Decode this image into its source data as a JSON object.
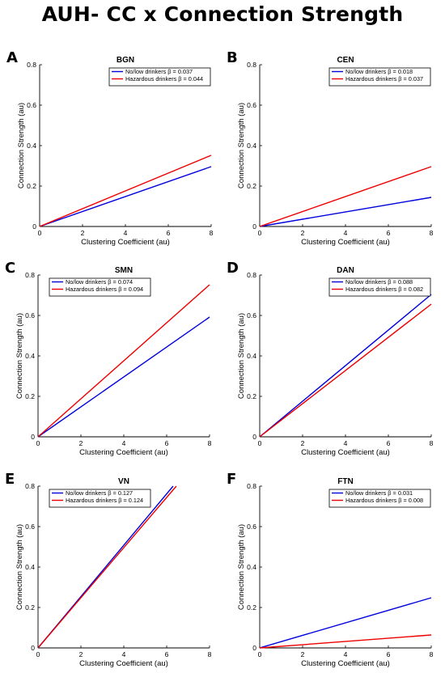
{
  "title": "AUH- CC x Connection Strength",
  "colors": {
    "no_low": "#0000dd",
    "hazardous": "#ee0000"
  },
  "chart_data": [
    {
      "panel_letter": "A",
      "type": "line",
      "title": "BGN",
      "xlabel": "Clustering Coefficient (au)",
      "ylabel": "Connection Strength (au)",
      "xlim": [
        0,
        8
      ],
      "ylim": [
        0,
        0.8
      ],
      "xticks": [
        "0",
        "2",
        "4",
        "6",
        "8"
      ],
      "yticks": [
        "0",
        "0.2",
        "0.4",
        "0.6",
        "0.8"
      ],
      "legend_position": "top-right",
      "series": [
        {
          "name": "No/low drinkers β = 0.037",
          "color": "#0000dd",
          "x": [
            0,
            8
          ],
          "y": [
            0,
            0.296
          ]
        },
        {
          "name": "Hazardous drinkers β = 0.044",
          "color": "#ee0000",
          "x": [
            0,
            8
          ],
          "y": [
            0,
            0.352
          ]
        }
      ]
    },
    {
      "panel_letter": "B",
      "type": "line",
      "title": "CEN",
      "xlabel": "Clustering Coefficient (au)",
      "ylabel": "Connection Strength (au)",
      "xlim": [
        0,
        8
      ],
      "ylim": [
        0,
        0.8
      ],
      "xticks": [
        "0",
        "2",
        "4",
        "6",
        "8"
      ],
      "yticks": [
        "0",
        "0.2",
        "0.4",
        "0.6",
        "0.8"
      ],
      "legend_position": "top-right",
      "series": [
        {
          "name": "No/low drinkers β = 0.018",
          "color": "#0000dd",
          "x": [
            0,
            8
          ],
          "y": [
            0,
            0.144
          ]
        },
        {
          "name": "Hazardous drinkers β = 0.037",
          "color": "#ee0000",
          "x": [
            0,
            8
          ],
          "y": [
            0,
            0.296
          ]
        }
      ]
    },
    {
      "panel_letter": "C",
      "type": "line",
      "title": "SMN",
      "xlabel": "Clustering Coefficient (au)",
      "ylabel": "Connection Strength (au)",
      "xlim": [
        0,
        8
      ],
      "ylim": [
        0,
        0.8
      ],
      "xticks": [
        "0",
        "2",
        "4",
        "6",
        "8"
      ],
      "yticks": [
        "0",
        "0.2",
        "0.4",
        "0.6",
        "0.8"
      ],
      "legend_position": "top-left",
      "series": [
        {
          "name": "No/low drinkers β = 0.074",
          "color": "#0000dd",
          "x": [
            0,
            8
          ],
          "y": [
            0,
            0.592
          ]
        },
        {
          "name": "Hazardous drinkers β = 0.094",
          "color": "#ee0000",
          "x": [
            0,
            8
          ],
          "y": [
            0,
            0.752
          ]
        }
      ]
    },
    {
      "panel_letter": "D",
      "type": "line",
      "title": "DAN",
      "xlabel": "Clustering Coefficient (au)",
      "ylabel": "Connection Strength (au)",
      "xlim": [
        0,
        8
      ],
      "ylim": [
        0,
        0.8
      ],
      "xticks": [
        "0",
        "2",
        "4",
        "6",
        "8"
      ],
      "yticks": [
        "0",
        "0.2",
        "0.4",
        "0.6",
        "0.8"
      ],
      "legend_position": "top-right",
      "series": [
        {
          "name": "No/low drinkers β = 0.088",
          "color": "#0000dd",
          "x": [
            0,
            8
          ],
          "y": [
            0,
            0.704
          ]
        },
        {
          "name": "Hazardous drinkers β = 0.082",
          "color": "#ee0000",
          "x": [
            0,
            8
          ],
          "y": [
            0,
            0.656
          ]
        }
      ]
    },
    {
      "panel_letter": "E",
      "type": "line",
      "title": "VN",
      "xlabel": "Clustering Coefficient (au)",
      "ylabel": "Connection Strength (au)",
      "xlim": [
        0,
        8
      ],
      "ylim": [
        0,
        0.8
      ],
      "xticks": [
        "0",
        "2",
        "4",
        "6",
        "8"
      ],
      "yticks": [
        "0",
        "0.2",
        "0.4",
        "0.6",
        "0.8"
      ],
      "legend_position": "top-left",
      "series": [
        {
          "name": "No/low drinkers β = 0.127",
          "color": "#0000dd",
          "x": [
            0,
            6.3
          ],
          "y": [
            0,
            0.8
          ]
        },
        {
          "name": "Hazardous drinkers β = 0.124",
          "color": "#ee0000",
          "x": [
            0,
            6.45
          ],
          "y": [
            0,
            0.8
          ]
        }
      ]
    },
    {
      "panel_letter": "F",
      "type": "line",
      "title": "FTN",
      "xlabel": "Clustering Coefficient (au)",
      "ylabel": "Connection Strength (au)",
      "xlim": [
        0,
        8
      ],
      "ylim": [
        0,
        0.8
      ],
      "xticks": [
        "0",
        "2",
        "4",
        "6",
        "8"
      ],
      "yticks": [
        "0",
        "0.2",
        "0.4",
        "0.6",
        "0.8"
      ],
      "legend_position": "top-right",
      "series": [
        {
          "name": "No/low drinkers β = 0.031",
          "color": "#0000dd",
          "x": [
            0,
            8
          ],
          "y": [
            0,
            0.248
          ]
        },
        {
          "name": "Hazardous drinkers β = 0.008",
          "color": "#ee0000",
          "x": [
            0,
            8
          ],
          "y": [
            0,
            0.064
          ]
        }
      ]
    }
  ]
}
